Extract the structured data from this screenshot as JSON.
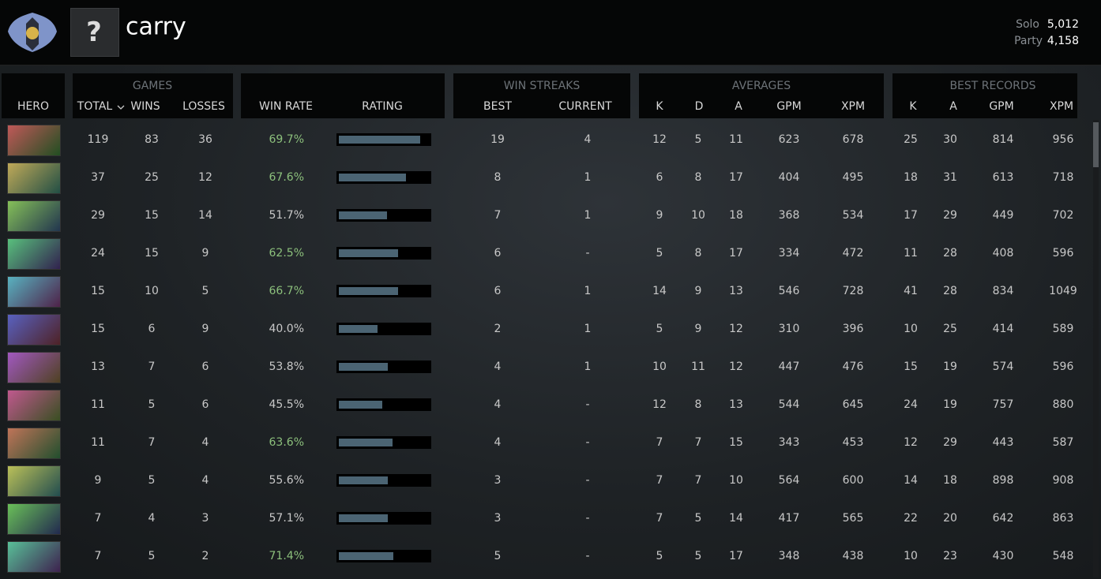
{
  "header": {
    "avatar_placeholder": "?",
    "name": "carry",
    "solo_label": "Solo",
    "solo_value": "5,012",
    "party_label": "Party",
    "party_value": "4,158"
  },
  "table": {
    "groups": [
      "GAMES",
      "WIN STREAKS",
      "AVERAGES",
      "BEST RECORDS"
    ],
    "columns": [
      "HERO",
      "TOTAL",
      "WINS",
      "LOSSES",
      "WIN RATE",
      "RATING",
      "BEST",
      "CURRENT",
      "K",
      "D",
      "A",
      "GPM",
      "XPM",
      "K",
      "A",
      "GPM",
      "XPM"
    ],
    "rows": [
      {
        "total": 119,
        "wins": 83,
        "losses": 36,
        "win_rate": "69.7%",
        "win_rate_color": "#8cc07c",
        "rating": 88,
        "streak_best": 19,
        "streak_current": 4,
        "averages": [
          12,
          5,
          11,
          623,
          678
        ],
        "best_records": [
          25,
          30,
          814,
          956
        ]
      },
      {
        "total": 37,
        "wins": 25,
        "losses": 12,
        "win_rate": "67.6%",
        "win_rate_color": "#8cc07c",
        "rating": 73,
        "streak_best": 8,
        "streak_current": 1,
        "averages": [
          6,
          8,
          17,
          404,
          495
        ],
        "best_records": [
          18,
          31,
          613,
          718
        ]
      },
      {
        "total": 29,
        "wins": 15,
        "losses": 14,
        "win_rate": "51.7%",
        "win_rate_color": "#c8c8c8",
        "rating": 52,
        "streak_best": 7,
        "streak_current": 1,
        "averages": [
          9,
          10,
          18,
          368,
          534
        ],
        "best_records": [
          17,
          29,
          449,
          702
        ]
      },
      {
        "total": 24,
        "wins": 15,
        "losses": 9,
        "win_rate": "62.5%",
        "win_rate_color": "#8cc07c",
        "rating": 64,
        "streak_best": 6,
        "streak_current": "-",
        "averages": [
          5,
          8,
          17,
          334,
          472
        ],
        "best_records": [
          11,
          28,
          408,
          596
        ]
      },
      {
        "total": 15,
        "wins": 10,
        "losses": 5,
        "win_rate": "66.7%",
        "win_rate_color": "#8cc07c",
        "rating": 64,
        "streak_best": 6,
        "streak_current": 1,
        "averages": [
          14,
          9,
          13,
          546,
          728
        ],
        "best_records": [
          41,
          28,
          834,
          1049
        ]
      },
      {
        "total": 15,
        "wins": 6,
        "losses": 9,
        "win_rate": "40.0%",
        "win_rate_color": "#c8c8c8",
        "rating": 42,
        "streak_best": 2,
        "streak_current": 1,
        "averages": [
          5,
          9,
          12,
          310,
          396
        ],
        "best_records": [
          10,
          25,
          414,
          589
        ]
      },
      {
        "total": 13,
        "wins": 7,
        "losses": 6,
        "win_rate": "53.8%",
        "win_rate_color": "#c8c8c8",
        "rating": 53,
        "streak_best": 4,
        "streak_current": 1,
        "averages": [
          10,
          11,
          12,
          447,
          476
        ],
        "best_records": [
          15,
          19,
          574,
          596
        ]
      },
      {
        "total": 11,
        "wins": 5,
        "losses": 6,
        "win_rate": "45.5%",
        "win_rate_color": "#c8c8c8",
        "rating": 47,
        "streak_best": 4,
        "streak_current": "-",
        "averages": [
          12,
          8,
          13,
          544,
          645
        ],
        "best_records": [
          24,
          19,
          757,
          880
        ]
      },
      {
        "total": 11,
        "wins": 7,
        "losses": 4,
        "win_rate": "63.6%",
        "win_rate_color": "#8cc07c",
        "rating": 58,
        "streak_best": 4,
        "streak_current": "-",
        "averages": [
          7,
          7,
          15,
          343,
          453
        ],
        "best_records": [
          12,
          29,
          443,
          587
        ]
      },
      {
        "total": 9,
        "wins": 5,
        "losses": 4,
        "win_rate": "55.6%",
        "win_rate_color": "#c8c8c8",
        "rating": 53,
        "streak_best": 3,
        "streak_current": "-",
        "averages": [
          7,
          7,
          10,
          564,
          600
        ],
        "best_records": [
          14,
          18,
          898,
          908
        ]
      },
      {
        "total": 7,
        "wins": 4,
        "losses": 3,
        "win_rate": "57.1%",
        "win_rate_color": "#c8c8c8",
        "rating": 53,
        "streak_best": 3,
        "streak_current": "-",
        "averages": [
          7,
          5,
          14,
          417,
          565
        ],
        "best_records": [
          22,
          20,
          642,
          863
        ]
      },
      {
        "total": 7,
        "wins": 5,
        "losses": 2,
        "win_rate": "71.4%",
        "win_rate_color": "#8cc07c",
        "rating": 59,
        "streak_best": 5,
        "streak_current": "-",
        "averages": [
          5,
          5,
          17,
          348,
          438
        ],
        "best_records": [
          10,
          23,
          430,
          548
        ]
      }
    ]
  }
}
